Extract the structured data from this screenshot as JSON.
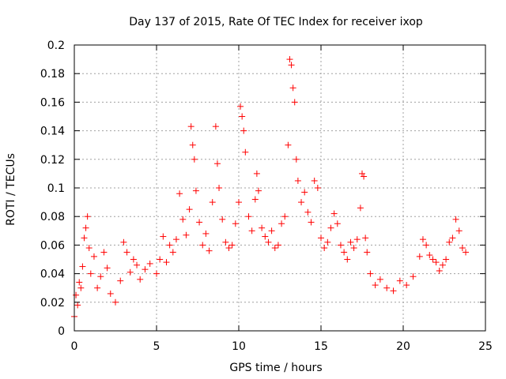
{
  "chart_data": {
    "type": "scatter",
    "title": "Day 137 of 2015, Rate Of TEC Index for receiver ixop",
    "xlabel": "GPS time / hours",
    "ylabel": "ROTI / TECUs",
    "xlim": [
      0,
      25
    ],
    "ylim": [
      0,
      0.2
    ],
    "x_ticks": [
      0,
      5,
      10,
      15,
      20,
      25
    ],
    "x_tick_labels": [
      "0",
      "5",
      "10",
      "15",
      "20",
      "25"
    ],
    "y_ticks": [
      0,
      0.02,
      0.04,
      0.06,
      0.08,
      0.1,
      0.12,
      0.14,
      0.16,
      0.18,
      0.2
    ],
    "y_tick_labels": [
      "0",
      "0.02",
      "0.04",
      "0.06",
      "0.08",
      "0.1",
      "0.12",
      "0.14",
      "0.16",
      "0.18",
      "0.2"
    ],
    "grid": true,
    "marker": "+",
    "marker_color": "#ff0000",
    "series": [
      {
        "name": "ROTI",
        "points": [
          [
            0.0,
            0.01
          ],
          [
            0.1,
            0.025
          ],
          [
            0.2,
            0.018
          ],
          [
            0.3,
            0.034
          ],
          [
            0.4,
            0.03
          ],
          [
            0.5,
            0.045
          ],
          [
            0.6,
            0.065
          ],
          [
            0.7,
            0.072
          ],
          [
            0.8,
            0.08
          ],
          [
            0.9,
            0.058
          ],
          [
            1.0,
            0.04
          ],
          [
            1.2,
            0.052
          ],
          [
            1.4,
            0.03
          ],
          [
            1.6,
            0.038
          ],
          [
            1.8,
            0.055
          ],
          [
            2.0,
            0.044
          ],
          [
            2.2,
            0.026
          ],
          [
            2.5,
            0.02
          ],
          [
            2.8,
            0.035
          ],
          [
            3.0,
            0.062
          ],
          [
            3.2,
            0.055
          ],
          [
            3.4,
            0.041
          ],
          [
            3.6,
            0.05
          ],
          [
            3.8,
            0.046
          ],
          [
            4.0,
            0.036
          ],
          [
            4.3,
            0.043
          ],
          [
            4.6,
            0.047
          ],
          [
            5.0,
            0.04
          ],
          [
            5.2,
            0.05
          ],
          [
            5.4,
            0.066
          ],
          [
            5.6,
            0.048
          ],
          [
            5.8,
            0.06
          ],
          [
            6.0,
            0.055
          ],
          [
            6.2,
            0.064
          ],
          [
            6.4,
            0.096
          ],
          [
            6.6,
            0.078
          ],
          [
            6.8,
            0.067
          ],
          [
            7.0,
            0.085
          ],
          [
            7.1,
            0.143
          ],
          [
            7.2,
            0.13
          ],
          [
            7.3,
            0.12
          ],
          [
            7.4,
            0.098
          ],
          [
            7.6,
            0.076
          ],
          [
            7.8,
            0.06
          ],
          [
            8.0,
            0.068
          ],
          [
            8.2,
            0.056
          ],
          [
            8.4,
            0.09
          ],
          [
            8.6,
            0.143
          ],
          [
            8.7,
            0.117
          ],
          [
            8.8,
            0.1
          ],
          [
            9.0,
            0.078
          ],
          [
            9.2,
            0.062
          ],
          [
            9.4,
            0.058
          ],
          [
            9.6,
            0.06
          ],
          [
            9.8,
            0.075
          ],
          [
            10.0,
            0.09
          ],
          [
            10.1,
            0.157
          ],
          [
            10.2,
            0.15
          ],
          [
            10.3,
            0.14
          ],
          [
            10.4,
            0.125
          ],
          [
            10.6,
            0.08
          ],
          [
            10.8,
            0.07
          ],
          [
            11.0,
            0.092
          ],
          [
            11.1,
            0.11
          ],
          [
            11.2,
            0.098
          ],
          [
            11.4,
            0.072
          ],
          [
            11.6,
            0.066
          ],
          [
            11.8,
            0.062
          ],
          [
            12.0,
            0.07
          ],
          [
            12.2,
            0.058
          ],
          [
            12.4,
            0.06
          ],
          [
            12.6,
            0.075
          ],
          [
            12.8,
            0.08
          ],
          [
            13.0,
            0.13
          ],
          [
            13.1,
            0.19
          ],
          [
            13.2,
            0.186
          ],
          [
            13.3,
            0.17
          ],
          [
            13.4,
            0.16
          ],
          [
            13.5,
            0.12
          ],
          [
            13.6,
            0.105
          ],
          [
            13.8,
            0.09
          ],
          [
            14.0,
            0.097
          ],
          [
            14.2,
            0.083
          ],
          [
            14.4,
            0.076
          ],
          [
            14.6,
            0.105
          ],
          [
            14.8,
            0.1
          ],
          [
            15.0,
            0.065
          ],
          [
            15.2,
            0.058
          ],
          [
            15.4,
            0.062
          ],
          [
            15.6,
            0.072
          ],
          [
            15.8,
            0.082
          ],
          [
            16.0,
            0.075
          ],
          [
            16.2,
            0.06
          ],
          [
            16.4,
            0.055
          ],
          [
            16.6,
            0.05
          ],
          [
            16.8,
            0.062
          ],
          [
            17.0,
            0.058
          ],
          [
            17.2,
            0.064
          ],
          [
            17.4,
            0.086
          ],
          [
            17.5,
            0.11
          ],
          [
            17.6,
            0.108
          ],
          [
            17.7,
            0.065
          ],
          [
            17.8,
            0.055
          ],
          [
            18.0,
            0.04
          ],
          [
            18.3,
            0.032
          ],
          [
            18.6,
            0.036
          ],
          [
            19.0,
            0.03
          ],
          [
            19.4,
            0.028
          ],
          [
            19.8,
            0.035
          ],
          [
            20.2,
            0.032
          ],
          [
            20.6,
            0.038
          ],
          [
            21.0,
            0.052
          ],
          [
            21.2,
            0.064
          ],
          [
            21.4,
            0.06
          ],
          [
            21.6,
            0.053
          ],
          [
            21.8,
            0.05
          ],
          [
            22.0,
            0.048
          ],
          [
            22.2,
            0.042
          ],
          [
            22.4,
            0.046
          ],
          [
            22.6,
            0.05
          ],
          [
            22.8,
            0.062
          ],
          [
            23.0,
            0.065
          ],
          [
            23.2,
            0.078
          ],
          [
            23.4,
            0.07
          ],
          [
            23.6,
            0.058
          ],
          [
            23.8,
            0.055
          ]
        ]
      }
    ]
  }
}
